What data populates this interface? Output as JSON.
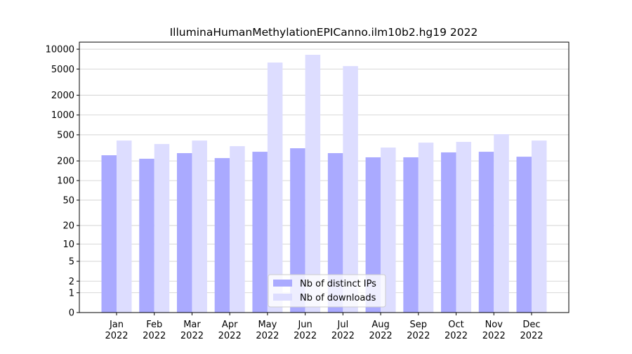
{
  "chart_data": {
    "type": "bar",
    "title": "IlluminaHumanMethylationEPICanno.ilm10b2.hg19 2022",
    "categories": [
      [
        "Jan",
        "2022"
      ],
      [
        "Feb",
        "2022"
      ],
      [
        "Mar",
        "2022"
      ],
      [
        "Apr",
        "2022"
      ],
      [
        "May",
        "2022"
      ],
      [
        "Jun",
        "2022"
      ],
      [
        "Jul",
        "2022"
      ],
      [
        "Aug",
        "2022"
      ],
      [
        "Sep",
        "2022"
      ],
      [
        "Oct",
        "2022"
      ],
      [
        "Nov",
        "2022"
      ],
      [
        "Dec",
        "2022"
      ]
    ],
    "series": [
      {
        "name": "Nb of distinct IPs",
        "color": "#aaaaff",
        "values": [
          244,
          216,
          263,
          221,
          276,
          312,
          263,
          227,
          227,
          270,
          276,
          232
        ]
      },
      {
        "name": "Nb of downloads",
        "color": "#ddddff",
        "values": [
          409,
          362,
          409,
          336,
          6270,
          8220,
          5540,
          320,
          380,
          390,
          511,
          409
        ]
      }
    ],
    "yscale": "log1p",
    "ylim": [
      0,
      12800
    ],
    "yticks": [
      0,
      1,
      2,
      5,
      10,
      20,
      50,
      100,
      200,
      500,
      1000,
      2000,
      5000,
      10000
    ],
    "grid": true,
    "legend": "lower center"
  }
}
